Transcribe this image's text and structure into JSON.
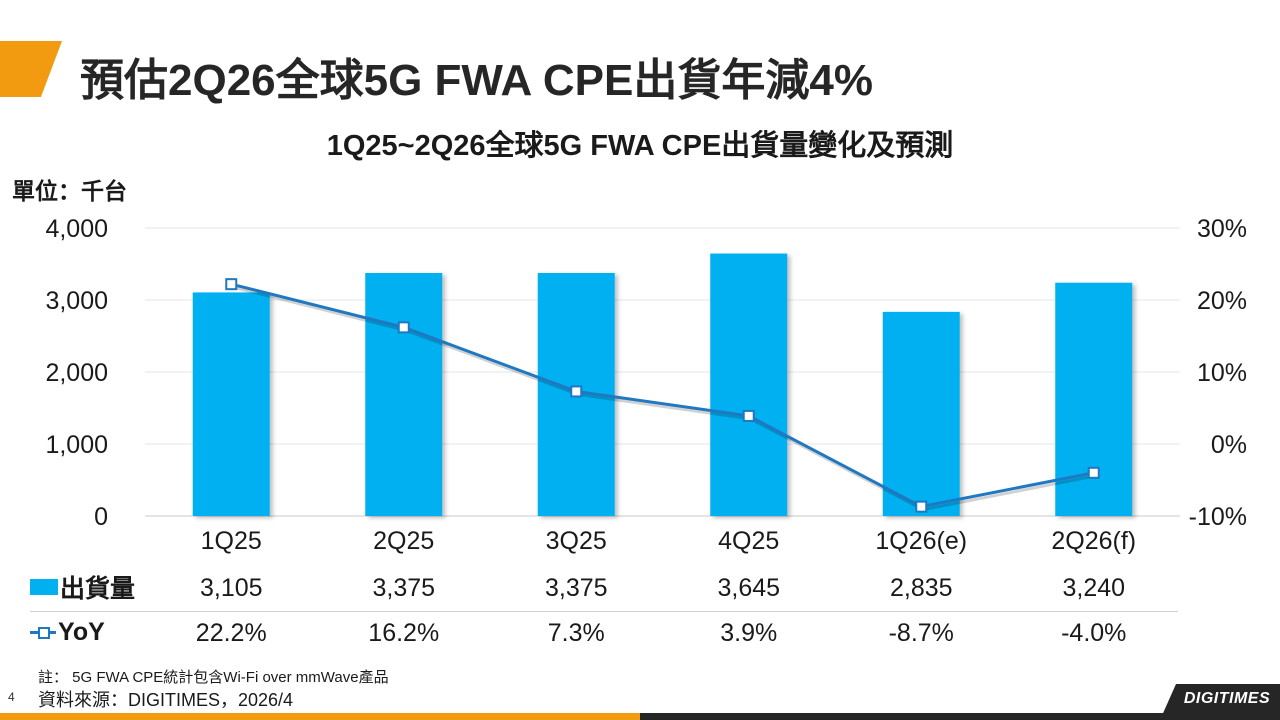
{
  "page": {
    "title": "預估2Q26全球5G FWA CPE出貨年減4%",
    "number": "4"
  },
  "chart_data": {
    "type": "bar+line",
    "title": "1Q25~2Q26全球5G FWA CPE出貨量變化及預測",
    "unit_label": "單位：千台",
    "categories": [
      "1Q25",
      "2Q25",
      "3Q25",
      "4Q25",
      "1Q26(e)",
      "2Q26(f)"
    ],
    "series": [
      {
        "name": "出貨量",
        "kind": "bar",
        "axis": "left",
        "values": [
          3105,
          3375,
          3375,
          3645,
          2835,
          3240
        ],
        "labels": [
          "3,105",
          "3,375",
          "3,375",
          "3,645",
          "2,835",
          "3,240"
        ],
        "color": "#00b0f0"
      },
      {
        "name": "YoY",
        "kind": "line",
        "axis": "right",
        "values": [
          22.2,
          16.2,
          7.3,
          3.9,
          -8.7,
          -4.0
        ],
        "labels": [
          "22.2%",
          "16.2%",
          "7.3%",
          "3.9%",
          "-8.7%",
          "-4.0%"
        ],
        "color": "#1f78c1"
      }
    ],
    "left_axis": {
      "min": 0,
      "max": 4000,
      "ticks": [
        0,
        1000,
        2000,
        3000,
        4000
      ],
      "tick_labels": [
        "0",
        "1,000",
        "2,000",
        "3,000",
        "4,000"
      ]
    },
    "right_axis": {
      "min": -10,
      "max": 30,
      "ticks": [
        -10,
        0,
        10,
        20,
        30
      ],
      "tick_labels": [
        "-10%",
        "0%",
        "10%",
        "20%",
        "30%"
      ]
    },
    "grid": true
  },
  "footer": {
    "note": "註： 5G FWA CPE統計包含Wi-Fi over mmWave產品",
    "source": "資料來源：DIGITIMES，2026/4",
    "brand": "DIGITIMES"
  },
  "colors": {
    "accent": "#f29b11",
    "dark": "#262626",
    "bar": "#00b0f0",
    "line": "#1f78c1"
  }
}
